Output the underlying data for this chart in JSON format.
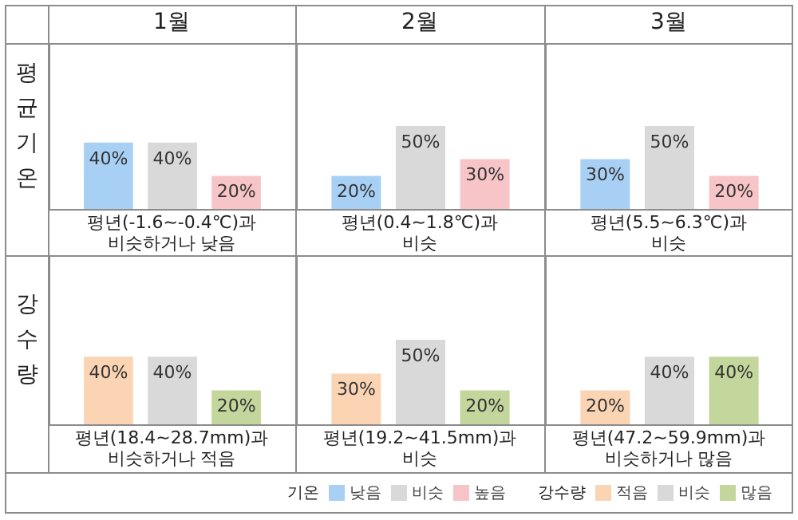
{
  "chart_data": [
    {
      "type": "bar",
      "title": "1월",
      "ylabel": "평균기온",
      "xlabel": "평년(-1.6~-0.4℃)과\n비슷하거나 낮음",
      "categories": [
        null
      ],
      "ylim": [
        0,
        100
      ],
      "tick_labels": false,
      "legend": "bottom",
      "legend_title": "기온",
      "series": [
        {
          "name": "낮음",
          "color": "#a8d0f5",
          "values": [
            40
          ],
          "value_labels": [
            "40%"
          ]
        },
        {
          "name": "비슷",
          "color": "#d9d9d9",
          "values": [
            40
          ],
          "value_labels": [
            "40%"
          ]
        },
        {
          "name": "높음",
          "color": "#f7c5c7",
          "values": [
            20
          ],
          "value_labels": [
            "20%"
          ]
        }
      ]
    },
    {
      "type": "bar",
      "title": "2월",
      "xlabel": "평년(0.4~1.8℃)과\n비슷",
      "categories": [
        null
      ],
      "ylim": [
        0,
        100
      ],
      "tick_labels": false,
      "series": [
        {
          "color": "#a8d0f5",
          "values": [
            20
          ],
          "value_labels": [
            "20%"
          ]
        },
        {
          "color": "#d9d9d9",
          "values": [
            50
          ],
          "value_labels": [
            "50%"
          ]
        },
        {
          "color": "#f7c5c7",
          "values": [
            30
          ],
          "value_labels": [
            "30%"
          ]
        }
      ]
    },
    {
      "type": "bar",
      "title": "3월",
      "xlabel": "평년(5.5~6.3℃)과\n비슷",
      "categories": [
        null
      ],
      "ylim": [
        0,
        100
      ],
      "tick_labels": false,
      "series": [
        {
          "color": "#a8d0f5",
          "values": [
            30
          ],
          "value_labels": [
            "30%"
          ]
        },
        {
          "color": "#d9d9d9",
          "values": [
            50
          ],
          "value_labels": [
            "50%"
          ]
        },
        {
          "color": "#f7c5c7",
          "values": [
            20
          ],
          "value_labels": [
            "20%"
          ]
        }
      ]
    },
    {
      "type": "bar",
      "ylabel": "강수량",
      "xlabel": "평년(18.4~28.7mm)과\n비슷하거나 적음",
      "categories": [
        null
      ],
      "ylim": [
        0,
        100
      ],
      "tick_labels": false,
      "legend": "bottom",
      "legend_title": "강수량",
      "series": [
        {
          "name": "적음",
          "color": "#fbd4b4",
          "values": [
            40
          ],
          "value_labels": [
            "40%"
          ]
        },
        {
          "name": "비슷",
          "color": "#d9d9d9",
          "values": [
            40
          ],
          "value_labels": [
            "40%"
          ]
        },
        {
          "name": "많음",
          "color": "#c3d69b",
          "values": [
            20
          ],
          "value_labels": [
            "20%"
          ]
        }
      ]
    },
    {
      "type": "bar",
      "xlabel": "평년(19.2~41.5mm)과\n비슷",
      "categories": [
        null
      ],
      "ylim": [
        0,
        100
      ],
      "tick_labels": false,
      "series": [
        {
          "color": "#fbd4b4",
          "values": [
            30
          ],
          "value_labels": [
            "30%"
          ]
        },
        {
          "color": "#d9d9d9",
          "values": [
            50
          ],
          "value_labels": [
            "50%"
          ]
        },
        {
          "color": "#c3d69b",
          "values": [
            20
          ],
          "value_labels": [
            "20%"
          ]
        }
      ]
    },
    {
      "type": "bar",
      "xlabel": "평년(47.2~59.9mm)과\n비슷하거나 많음",
      "categories": [
        null
      ],
      "ylim": [
        0,
        100
      ],
      "tick_labels": false,
      "series": [
        {
          "color": "#fbd4b4",
          "values": [
            20
          ],
          "value_labels": [
            "20%"
          ]
        },
        {
          "color": "#d9d9d9",
          "values": [
            40
          ],
          "value_labels": [
            "40%"
          ]
        },
        {
          "color": "#c3d69b",
          "values": [
            40
          ],
          "value_labels": [
            "40%"
          ]
        }
      ]
    }
  ]
}
